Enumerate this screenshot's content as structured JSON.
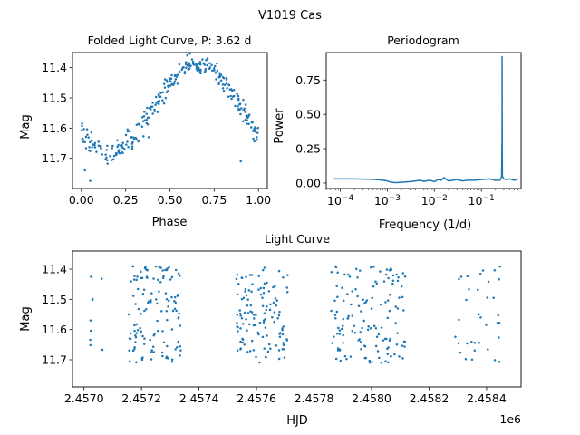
{
  "suptitle": "V1019 Cas",
  "colors": {
    "series": "#1f77b4"
  },
  "chart_data": [
    {
      "id": "folded",
      "type": "scatter",
      "title": "Folded Light Curve, P: 3.62 d",
      "xlabel": "Phase",
      "ylabel": "Mag",
      "xlim": [
        -0.05,
        1.05
      ],
      "ylim": [
        11.8,
        11.35
      ],
      "y_inverted": true,
      "xticks": [
        0.0,
        0.25,
        0.5,
        0.75,
        1.0
      ],
      "xtick_labels": [
        "0.00",
        "0.25",
        "0.50",
        "0.75",
        "1.00"
      ],
      "yticks": [
        11.4,
        11.5,
        11.6,
        11.7
      ],
      "ytick_labels": [
        "11.4",
        "11.5",
        "11.6",
        "11.7"
      ],
      "grid": false,
      "legend": "none",
      "shape": {
        "n_points": 300,
        "min_mag": 11.68,
        "max_mag": 11.39,
        "min_phase": 0.15,
        "max_phase": 0.65,
        "scatter_mag": 0.025,
        "outliers": [
          [
            0.02,
            11.74
          ],
          [
            0.05,
            11.775
          ],
          [
            0.38,
            11.63
          ],
          [
            0.9,
            11.71
          ]
        ]
      }
    },
    {
      "id": "periodogram",
      "type": "line",
      "title": "Periodogram",
      "xlabel": "Frequency (1/d)",
      "ylabel": "Power",
      "x_scale": "log",
      "xlim": [
        5e-05,
        0.7
      ],
      "ylim": [
        -0.04,
        0.95
      ],
      "xticks": [
        0.0001,
        0.001,
        0.01,
        0.1
      ],
      "xtick_labels": [
        "10^-4",
        "10^-3",
        "10^-2",
        "10^-1"
      ],
      "yticks": [
        0.0,
        0.25,
        0.5,
        0.75
      ],
      "ytick_labels": [
        "0.00",
        "0.25",
        "0.50",
        "0.75"
      ],
      "grid": false,
      "legend": "none",
      "series": [
        {
          "x": [
            7e-05,
            0.0001,
            0.0002,
            0.0004,
            0.0006,
            0.0008,
            0.001,
            0.0012,
            0.0015,
            0.002,
            0.003,
            0.004,
            0.005,
            0.006,
            0.008,
            0.01,
            0.012,
            0.014,
            0.016,
            0.02,
            0.025,
            0.03,
            0.04,
            0.05,
            0.07,
            0.1,
            0.15,
            0.2,
            0.25,
            0.27,
            0.275,
            0.276,
            0.2762,
            0.277,
            0.28,
            0.3,
            0.35,
            0.4,
            0.5,
            0.6
          ],
          "y": [
            0.03,
            0.03,
            0.03,
            0.028,
            0.025,
            0.02,
            0.015,
            0.005,
            0.003,
            0.005,
            0.01,
            0.015,
            0.02,
            0.012,
            0.02,
            0.01,
            0.025,
            0.02,
            0.04,
            0.015,
            0.02,
            0.025,
            0.015,
            0.02,
            0.02,
            0.025,
            0.03,
            0.02,
            0.02,
            0.05,
            0.3,
            0.6,
            0.92,
            0.5,
            0.05,
            0.03,
            0.025,
            0.03,
            0.02,
            0.03
          ]
        }
      ]
    },
    {
      "id": "lightcurve",
      "type": "scatter",
      "title": "Light Curve",
      "xlabel": "HJD",
      "ylabel": "Mag",
      "offset_label": "1e6",
      "xlim": [
        2.45696,
        2.45852
      ],
      "ylim": [
        11.79,
        11.34
      ],
      "y_inverted": true,
      "xticks": [
        2.457,
        2.4572,
        2.4574,
        2.4576,
        2.4578,
        2.458,
        2.4582,
        2.4584
      ],
      "xtick_labels": [
        "2.4570",
        "2.4572",
        "2.4574",
        "2.4576",
        "2.4578",
        "2.4580",
        "2.4582",
        "2.4584"
      ],
      "yticks": [
        11.4,
        11.5,
        11.6,
        11.7
      ],
      "ytick_labels": [
        "11.4",
        "11.5",
        "11.6",
        "11.7"
      ],
      "grid": false,
      "legend": "none",
      "segments": [
        {
          "x_start": 2.45702,
          "x_end": 2.45703,
          "n": 7
        },
        {
          "x_start": 2.45706,
          "x_end": 2.45707,
          "n": 2
        },
        {
          "x_start": 2.45715,
          "x_end": 2.45734,
          "n": 125
        },
        {
          "x_start": 2.45753,
          "x_end": 2.45771,
          "n": 125
        },
        {
          "x_start": 2.45786,
          "x_end": 2.45812,
          "n": 140
        },
        {
          "x_start": 2.45829,
          "x_end": 2.45845,
          "n": 35
        }
      ]
    }
  ]
}
